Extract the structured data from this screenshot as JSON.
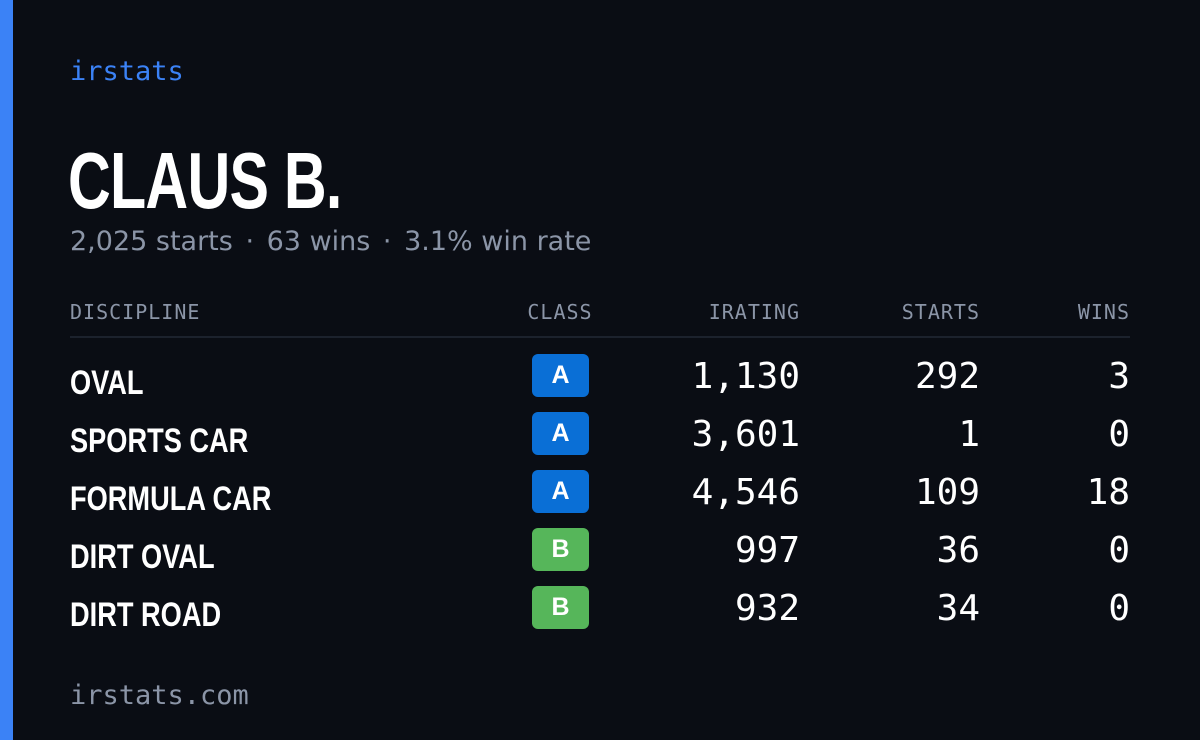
{
  "brand": "irstats",
  "driver": {
    "name": "CLAUS B."
  },
  "summary": {
    "starts": "2,025 starts",
    "sep": "·",
    "wins": "63 wins",
    "win_rate": "3.1% win rate"
  },
  "colors": {
    "accent": "#3b82f6",
    "class_a": "#0a6fd6",
    "class_b": "#56b65a"
  },
  "table": {
    "headers": {
      "discipline": "DISCIPLINE",
      "class": "CLASS",
      "irating": "IRATING",
      "starts": "STARTS",
      "wins": "WINS"
    },
    "rows": [
      {
        "discipline": "OVAL",
        "class": "A",
        "irating": "1,130",
        "starts": "292",
        "wins": "3"
      },
      {
        "discipline": "SPORTS CAR",
        "class": "A",
        "irating": "3,601",
        "starts": "1",
        "wins": "0"
      },
      {
        "discipline": "FORMULA CAR",
        "class": "A",
        "irating": "4,546",
        "starts": "109",
        "wins": "18"
      },
      {
        "discipline": "DIRT OVAL",
        "class": "B",
        "irating": "997",
        "starts": "36",
        "wins": "0"
      },
      {
        "discipline": "DIRT ROAD",
        "class": "B",
        "irating": "932",
        "starts": "34",
        "wins": "0"
      }
    ]
  },
  "footer": "irstats.com"
}
